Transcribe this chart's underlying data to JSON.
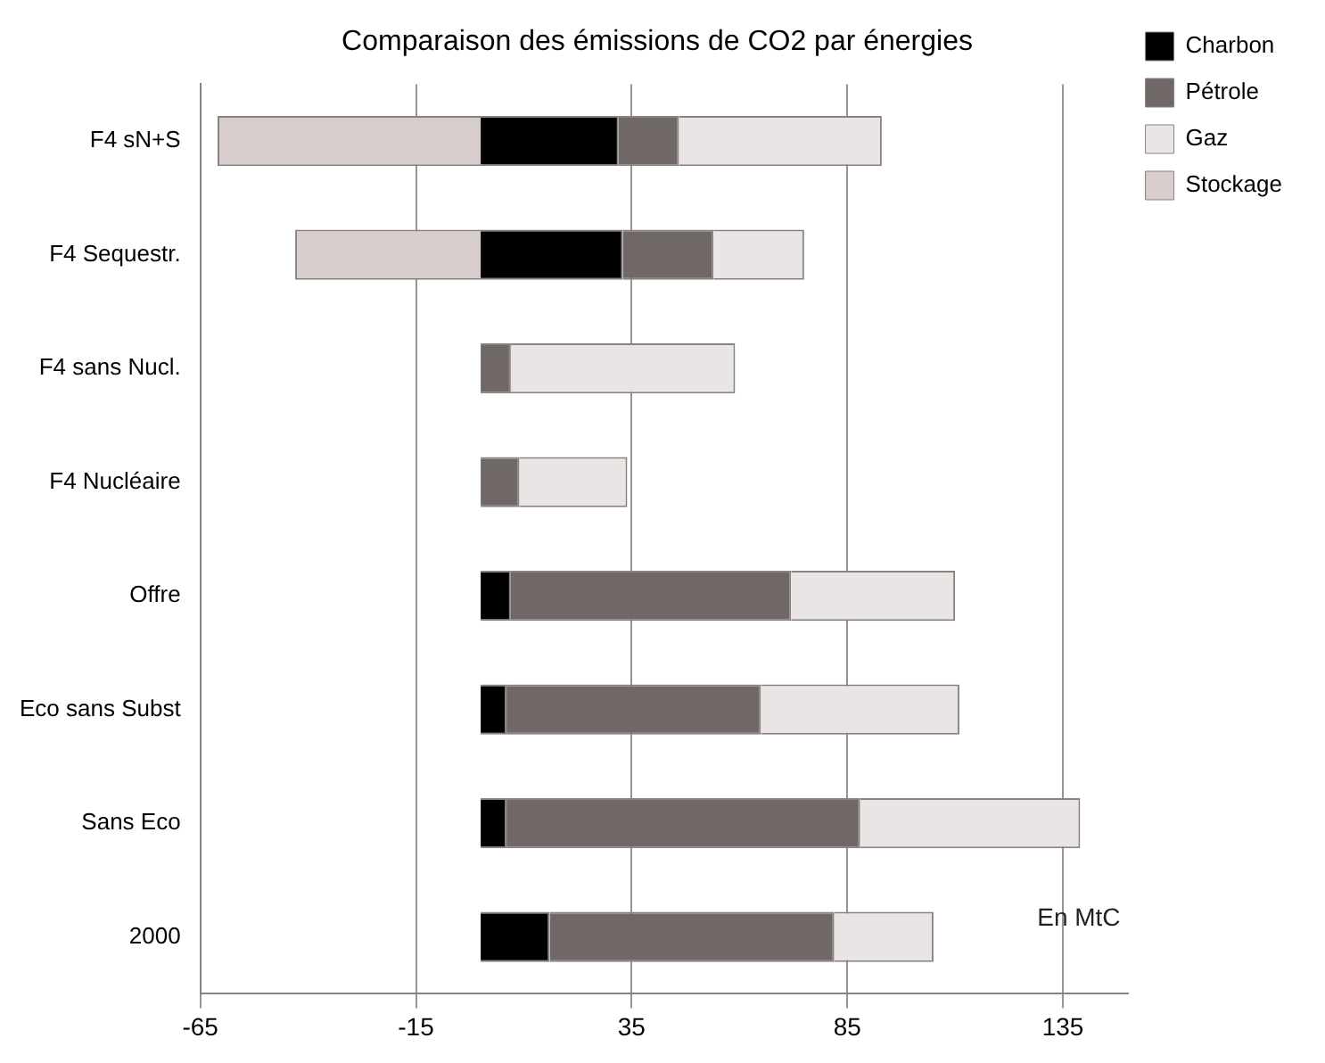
{
  "chart_data": {
    "type": "bar",
    "orientation": "horizontal",
    "stacked": true,
    "title": "Comparaison des émissions de CO2 par énergies",
    "categories": [
      "F4 sN+S",
      "F4 Sequestr.",
      "F4 sans Nucl.",
      "F4 Nucléaire",
      "Offre",
      "Eco sans Subst",
      "Sans Eco",
      "2000"
    ],
    "series": [
      {
        "name": "Charbon",
        "color": "#000000",
        "values": [
          32,
          33,
          0,
          0,
          7,
          6,
          6,
          16
        ]
      },
      {
        "name": "Pétrole",
        "color": "#706866",
        "values": [
          14,
          21,
          7,
          9,
          65,
          59,
          82,
          66
        ]
      },
      {
        "name": "Gaz",
        "color": "#e9e5e4",
        "values": [
          47,
          21,
          52,
          25,
          38,
          46,
          51,
          23
        ]
      },
      {
        "name": "Stockage",
        "color": "#d6cdcc",
        "values": [
          -61,
          -43,
          null,
          null,
          null,
          null,
          null,
          null
        ]
      }
    ],
    "xlim": [
      -65,
      150
    ],
    "xticks": [
      -65,
      -15,
      35,
      85,
      135
    ],
    "grid": "x",
    "legend": "top right",
    "annotations": [
      "En MtC"
    ]
  }
}
